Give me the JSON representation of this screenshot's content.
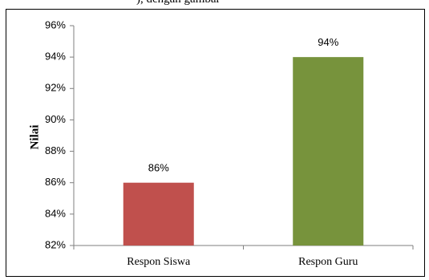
{
  "caption_fragment": "), dengan gambar",
  "chart_data": {
    "type": "bar",
    "categories": [
      "Respon Siswa",
      "Respon Guru"
    ],
    "values": [
      86,
      94
    ],
    "value_labels": [
      "86%",
      "94%"
    ],
    "colors": [
      "#c0504d",
      "#77933c"
    ],
    "xlabel": "",
    "ylabel": "Nilai",
    "ylim": [
      82,
      96
    ],
    "yticks": [
      82,
      84,
      86,
      88,
      90,
      92,
      94,
      96
    ],
    "ytick_labels": [
      "82%",
      "84%",
      "86%",
      "88%",
      "90%",
      "92%",
      "94%",
      "96%"
    ],
    "grid": false,
    "legend": "none"
  }
}
